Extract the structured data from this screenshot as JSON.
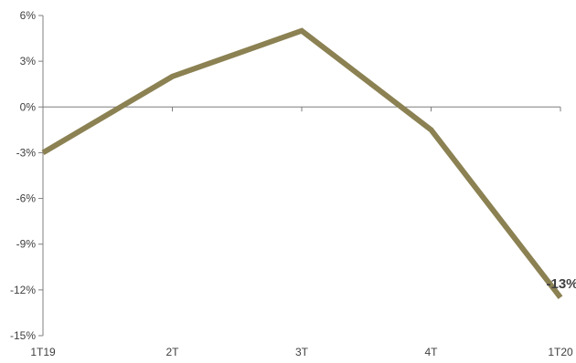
{
  "chart_data": {
    "type": "line",
    "title": "",
    "xlabel": "",
    "ylabel": "",
    "categories": [
      "1T19",
      "2T",
      "3T",
      "4T",
      "1T20"
    ],
    "series": [
      {
        "values": [
          -3.0,
          2.0,
          5.0,
          -1.5,
          -12.5
        ],
        "color": "#8b8152"
      }
    ],
    "ylim": [
      -15,
      6
    ],
    "yticks": [
      6,
      3,
      0,
      -3,
      -6,
      -9,
      -12,
      -15
    ],
    "ytick_labels": [
      "6%",
      "3%",
      "0%",
      "-3%",
      "-6%",
      "-9%",
      "-12%",
      "-15%"
    ],
    "data_labels": [
      {
        "index": 4,
        "text": "-13%"
      }
    ],
    "grid": false,
    "legend": "none"
  }
}
